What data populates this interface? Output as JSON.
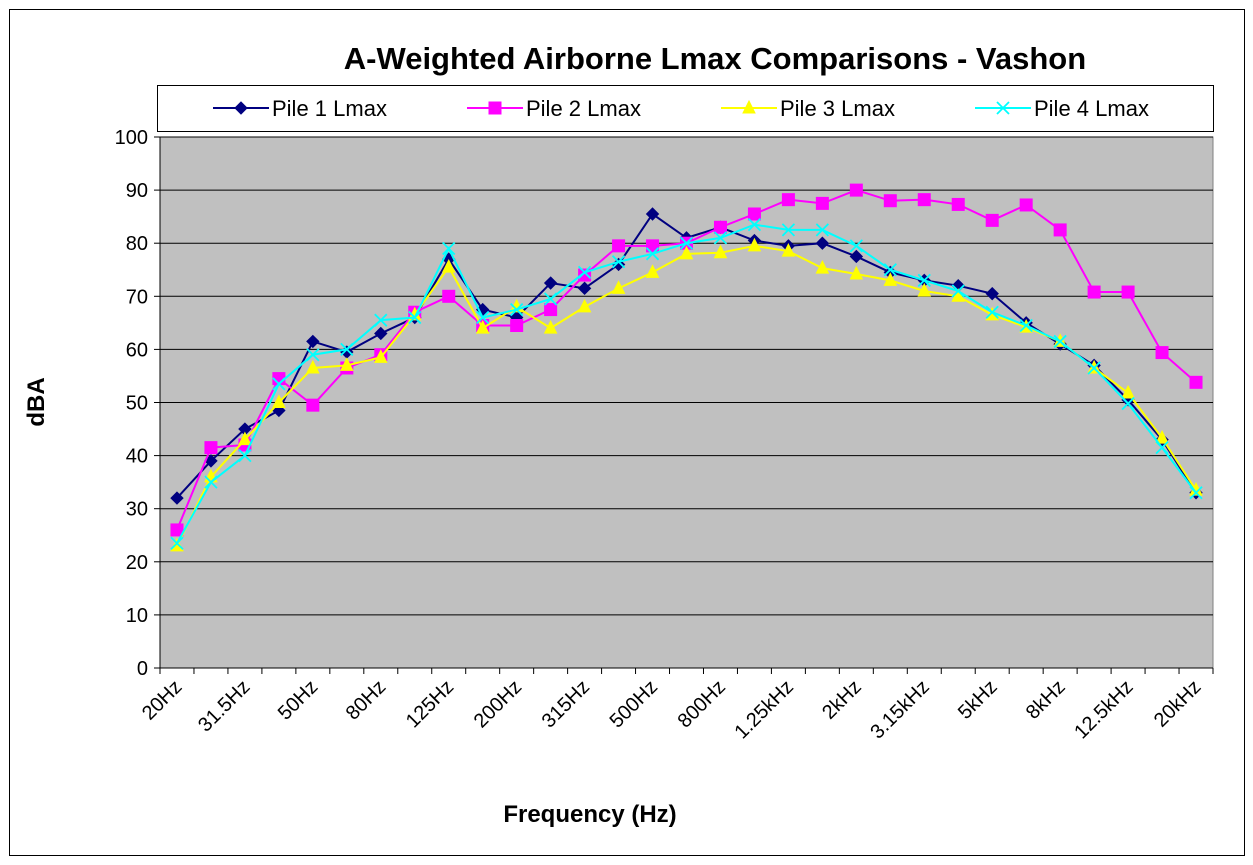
{
  "chart_data": {
    "type": "line",
    "title": "A-Weighted Airborne Lmax Comparisons - Vashon",
    "x_label": "Frequency (Hz)",
    "y_label": "dBA",
    "categories": [
      "20Hz",
      null,
      "31.5Hz",
      null,
      "50Hz",
      null,
      "80Hz",
      null,
      "125Hz",
      null,
      "200Hz",
      null,
      "315Hz",
      null,
      "500Hz",
      null,
      "800Hz",
      null,
      "1.25kHz",
      null,
      "2kHz",
      null,
      "3.15kHz",
      null,
      "5kHz",
      null,
      "8kHz",
      null,
      "12.5kHz",
      null,
      "20kHz"
    ],
    "series": [
      {
        "name": "Pile 1 Lmax",
        "color": "#000080",
        "marker": "diamond",
        "values": [
          32,
          39,
          45,
          48.5,
          61.5,
          59.5,
          63,
          66,
          77,
          67.5,
          66,
          72.5,
          71.5,
          76,
          85.5,
          81,
          83,
          80.5,
          79.5,
          80,
          77.5,
          74.5,
          73,
          72,
          70.5,
          65,
          61,
          57,
          50.5,
          43,
          33
        ]
      },
      {
        "name": "Pile 2 Lmax",
        "color": "#FF00FF",
        "marker": "square",
        "values": [
          26,
          41.5,
          42,
          54.5,
          49.5,
          56.5,
          59,
          67,
          70,
          64.5,
          64.5,
          67.5,
          74,
          79.5,
          79.5,
          80,
          83,
          85.5,
          88.2,
          87.5,
          90,
          88,
          88.2,
          87.3,
          84.3,
          87.2,
          82.5,
          70.8,
          70.8,
          59.4,
          53.8
        ]
      },
      {
        "name": "Pile 3 Lmax",
        "color": "#FFFF00",
        "marker": "triangle",
        "values": [
          23,
          36,
          43,
          50,
          56.5,
          57,
          58.5,
          66.5,
          75.5,
          64,
          68,
          64,
          68,
          71.5,
          74.5,
          78,
          78.2,
          79.5,
          78.5,
          75.3,
          74.2,
          73,
          71,
          70,
          66.5,
          64.2,
          61.5,
          56.5,
          51.8,
          43.3,
          33.5
        ]
      },
      {
        "name": "Pile 4 Lmax",
        "color": "#00FFFF",
        "marker": "x",
        "values": [
          23.5,
          35,
          40,
          53.5,
          59,
          60,
          65.5,
          66,
          79,
          66,
          67.5,
          69.5,
          74.5,
          76.5,
          78,
          80,
          81,
          83.5,
          82.5,
          82.5,
          79.5,
          75,
          73,
          71,
          67,
          64.5,
          61.5,
          56.5,
          49.8,
          41.5,
          33
        ]
      }
    ],
    "ylim": [
      0,
      100
    ],
    "yticks": [
      0,
      10,
      20,
      30,
      40,
      50,
      60,
      70,
      80,
      90,
      100
    ],
    "grid": true,
    "legend": "top",
    "plot_background": "#C0C0C0"
  }
}
